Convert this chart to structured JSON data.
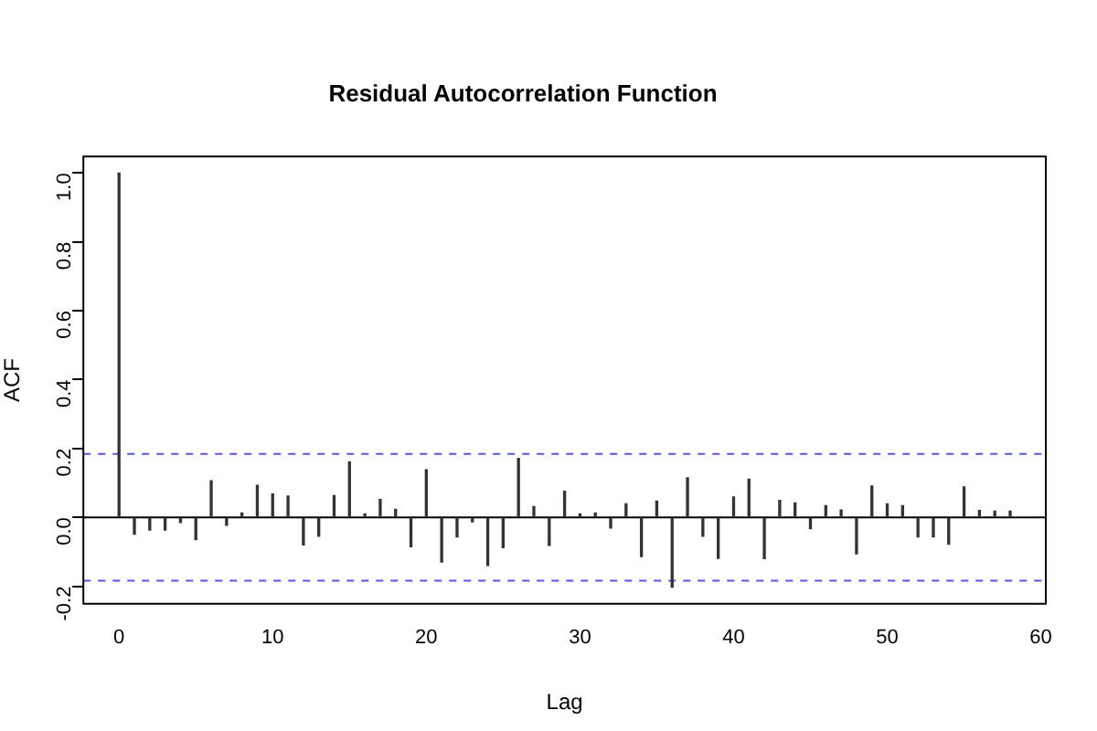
{
  "chart_data": {
    "type": "bar",
    "title": "Residual Autocorrelation Function",
    "xlabel": "Lag",
    "ylabel": "ACF",
    "x": [
      0,
      1,
      2,
      3,
      4,
      5,
      6,
      7,
      8,
      9,
      10,
      11,
      12,
      13,
      14,
      15,
      16,
      17,
      18,
      19,
      20,
      21,
      22,
      23,
      24,
      25,
      26,
      27,
      28,
      29,
      30,
      31,
      32,
      33,
      34,
      35,
      36,
      37,
      38,
      39,
      40,
      41,
      42,
      43,
      44,
      45,
      46,
      47,
      48,
      49,
      50,
      51,
      52,
      53,
      54,
      55,
      56,
      57,
      58
    ],
    "values": [
      1,
      -0.049,
      -0.037,
      -0.037,
      -0.015,
      -0.065,
      0.106,
      -0.023,
      0.013,
      0.093,
      0.068,
      0.062,
      -0.08,
      -0.055,
      0.063,
      0.161,
      0.01,
      0.052,
      0.023,
      -0.085,
      0.138,
      -0.13,
      -0.057,
      -0.013,
      -0.14,
      -0.088,
      0.171,
      0.031,
      -0.081,
      0.076,
      0.01,
      0.013,
      -0.031,
      0.039,
      -0.114,
      0.047,
      -0.203,
      0.115,
      -0.055,
      -0.119,
      0.059,
      0.111,
      -0.12,
      0.049,
      0.042,
      -0.033,
      0.034,
      0.021,
      -0.106,
      0.091,
      0.039,
      0.034,
      -0.057,
      -0.057,
      -0.078,
      0.088,
      0.02,
      0.018,
      0.018
    ],
    "color": "#333333",
    "xlim": [
      -2.32,
      60.32
    ],
    "xticks": [
      0,
      10,
      20,
      30,
      40,
      50,
      60
    ],
    "ylim": [
      -0.251,
      1.048
    ],
    "yticks": [
      {
        "value": -0.2,
        "label": "-0.2"
      },
      {
        "value": 0,
        "label": "0.0"
      },
      0.2,
      0.4,
      0.6,
      0.8,
      {
        "value": 1,
        "label": "1.0"
      }
    ],
    "ref_lines": [
      {
        "axis": "y",
        "value": 0,
        "color": "#000000",
        "line_style": "solid"
      },
      {
        "axis": "y",
        "value": 0.184,
        "color": "#5555ee",
        "line_style": "dashed"
      },
      {
        "axis": "y",
        "value": -0.184,
        "color": "#5555ee",
        "line_style": "dashed"
      }
    ],
    "grid": false,
    "legend": false
  }
}
